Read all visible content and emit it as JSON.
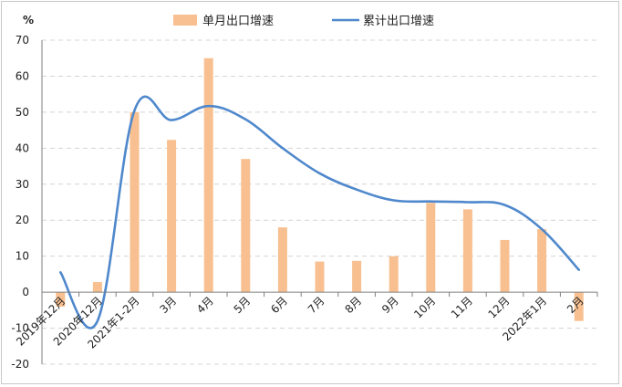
{
  "chart_data": {
    "type": "bar",
    "unit_label": "%",
    "categories": [
      "2019年12月",
      "2020年12月",
      "2021年1-2月",
      "3月",
      "4月",
      "5月",
      "6月",
      "7月",
      "8月",
      "9月",
      "10月",
      "11月",
      "12月",
      "2022年1月",
      "2月"
    ],
    "series": [
      {
        "name": "单月出口增速",
        "type": "bar",
        "color": "#f8c090",
        "values": [
          -4.0,
          2.8,
          50.0,
          42.3,
          65.0,
          37.0,
          18.0,
          8.5,
          8.7,
          10.0,
          24.8,
          23.0,
          14.5,
          17.5,
          -8.0
        ]
      },
      {
        "name": "累计出口增速",
        "type": "line",
        "color": "#4f88cc",
        "values": [
          5.5,
          -8.0,
          50.5,
          47.8,
          51.7,
          48.0,
          40.0,
          33.0,
          28.5,
          25.5,
          25.2,
          25.0,
          24.2,
          17.5,
          6.2
        ]
      }
    ],
    "y_ticks": [
      -20,
      -10,
      0,
      10,
      20,
      30,
      40,
      50,
      60,
      70
    ],
    "ylim": [
      -20,
      70
    ],
    "grid": true,
    "legend_position": "top"
  }
}
